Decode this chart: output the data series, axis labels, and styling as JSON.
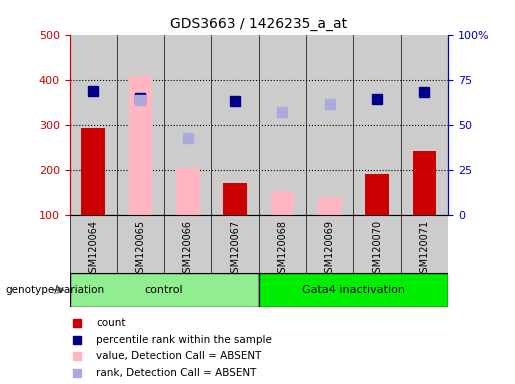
{
  "title": "GDS3663 / 1426235_a_at",
  "samples": [
    "GSM120064",
    "GSM120065",
    "GSM120066",
    "GSM120067",
    "GSM120068",
    "GSM120069",
    "GSM120070",
    "GSM120071"
  ],
  "count": [
    293,
    null,
    null,
    172,
    null,
    null,
    190,
    242
  ],
  "count_absent": [
    null,
    408,
    205,
    null,
    153,
    140,
    null,
    null
  ],
  "percentile_rank": [
    375,
    360,
    null,
    353,
    null,
    null,
    357,
    372
  ],
  "rank_absent": [
    null,
    355,
    271,
    null,
    328,
    347,
    null,
    null
  ],
  "ylim_left": [
    100,
    500
  ],
  "ylim_right": [
    0,
    100
  ],
  "left_ticks": [
    100,
    200,
    300,
    400,
    500
  ],
  "right_ticks": [
    0,
    25,
    50,
    75,
    100
  ],
  "right_tick_labels": [
    "0",
    "25",
    "50",
    "75",
    "100%"
  ],
  "control_indices": [
    0,
    1,
    2,
    3
  ],
  "gata4_indices": [
    4,
    5,
    6,
    7
  ],
  "control_label": "control",
  "gata4_label": "Gata4 inactivation",
  "control_color": "#90EE90",
  "gata4_color": "#00EE00",
  "bar_width": 0.5,
  "count_color": "#CC0000",
  "count_absent_color": "#FFB6C1",
  "percentile_color": "#00008B",
  "rank_absent_color": "#AAAADD",
  "bg_color": "#FFFFFF",
  "plot_bg": "#FFFFFF",
  "col_bg": "#CCCCCC",
  "left_axis_color": "#CC0000",
  "right_axis_color": "#0000CC",
  "dotted_grid_values": [
    200,
    300,
    400
  ],
  "marker_size": 7,
  "legend_items": [
    {
      "color": "#CC0000",
      "label": "count"
    },
    {
      "color": "#00008B",
      "label": "percentile rank within the sample"
    },
    {
      "color": "#FFB6C1",
      "label": "value, Detection Call = ABSENT"
    },
    {
      "color": "#AAAADD",
      "label": "rank, Detection Call = ABSENT"
    }
  ],
  "genotype_label": "genotype/variation"
}
